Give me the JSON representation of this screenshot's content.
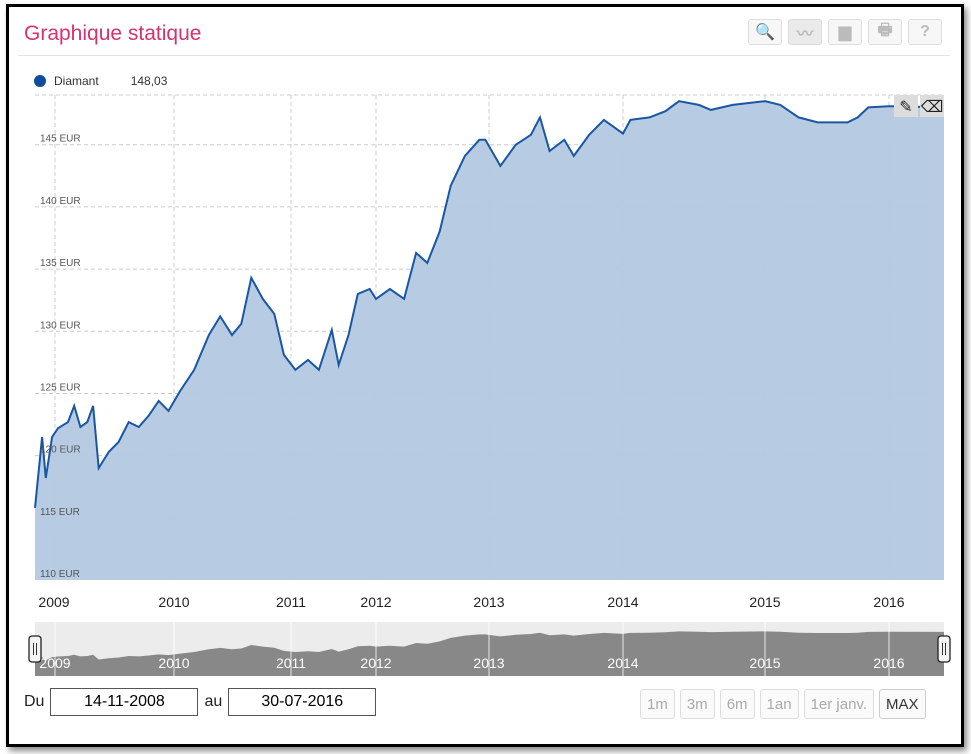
{
  "header": {
    "title": "Graphique statique",
    "tools": [
      {
        "name": "search-icon",
        "glyph": "🔍"
      },
      {
        "name": "line-chart-icon",
        "glyph": "〰"
      },
      {
        "name": "area-chart-icon",
        "glyph": "▆"
      },
      {
        "name": "print-icon",
        "glyph": "🖶"
      },
      {
        "name": "help-icon",
        "glyph": "?"
      }
    ]
  },
  "chart_data": {
    "type": "area",
    "legend": {
      "name": "Diamant",
      "value": "148,03",
      "placement": "top-left"
    },
    "series": [
      {
        "name": "Diamant",
        "color": "#1a56a3",
        "fill": "#b3c9e2",
        "points": [
          [
            "2008-11-14",
            115.8
          ],
          [
            "2008-12-01",
            121.5
          ],
          [
            "2008-12-10",
            118.2
          ],
          [
            "2008-12-25",
            121.5
          ],
          [
            "2009-01-10",
            122.2
          ],
          [
            "2009-02-10",
            122.7
          ],
          [
            "2009-03-01",
            124.0
          ],
          [
            "2009-03-20",
            122.3
          ],
          [
            "2009-04-10",
            122.7
          ],
          [
            "2009-04-28",
            124.0
          ],
          [
            "2009-05-15",
            119.0
          ],
          [
            "2009-06-15",
            120.3
          ],
          [
            "2009-07-15",
            121.1
          ],
          [
            "2009-08-15",
            122.7
          ],
          [
            "2009-09-15",
            122.3
          ],
          [
            "2009-10-15",
            123.2
          ],
          [
            "2009-11-15",
            124.4
          ],
          [
            "2009-12-15",
            123.6
          ],
          [
            "2010-01-20",
            125.2
          ],
          [
            "2010-03-05",
            126.9
          ],
          [
            "2010-04-20",
            129.7
          ],
          [
            "2010-05-25",
            131.2
          ],
          [
            "2010-07-01",
            129.7
          ],
          [
            "2010-07-30",
            130.6
          ],
          [
            "2010-08-30",
            134.3
          ],
          [
            "2010-10-05",
            132.6
          ],
          [
            "2010-11-10",
            131.4
          ],
          [
            "2010-12-10",
            128.1
          ],
          [
            "2011-01-20",
            126.9
          ],
          [
            "2011-03-15",
            127.7
          ],
          [
            "2011-05-01",
            126.9
          ],
          [
            "2011-06-25",
            130.1
          ],
          [
            "2011-07-25",
            127.3
          ],
          [
            "2011-09-05",
            129.7
          ],
          [
            "2011-10-15",
            133.0
          ],
          [
            "2011-12-05",
            133.4
          ],
          [
            "2012-01-01",
            132.6
          ],
          [
            "2012-02-15",
            133.4
          ],
          [
            "2012-04-01",
            132.6
          ],
          [
            "2012-05-10",
            136.3
          ],
          [
            "2012-06-15",
            135.5
          ],
          [
            "2012-07-25",
            138.0
          ],
          [
            "2012-08-30",
            141.7
          ],
          [
            "2012-10-15",
            144.1
          ],
          [
            "2012-12-01",
            145.4
          ],
          [
            "2012-12-20",
            145.4
          ],
          [
            "2013-02-01",
            143.3
          ],
          [
            "2013-03-15",
            145.0
          ],
          [
            "2013-04-25",
            145.8
          ],
          [
            "2013-05-20",
            147.2
          ],
          [
            "2013-06-15",
            144.5
          ],
          [
            "2013-07-25",
            145.4
          ],
          [
            "2013-08-20",
            144.1
          ],
          [
            "2013-10-01",
            145.8
          ],
          [
            "2013-11-10",
            147.0
          ],
          [
            "2014-01-01",
            145.9
          ],
          [
            "2014-01-20",
            147.0
          ],
          [
            "2014-03-10",
            147.2
          ],
          [
            "2014-04-20",
            147.7
          ],
          [
            "2014-05-25",
            148.5
          ],
          [
            "2014-07-15",
            148.2
          ],
          [
            "2014-08-15",
            147.8
          ],
          [
            "2014-10-10",
            148.2
          ],
          [
            "2015-01-01",
            148.5
          ],
          [
            "2015-02-15",
            148.2
          ],
          [
            "2015-04-10",
            147.2
          ],
          [
            "2015-06-05",
            146.8
          ],
          [
            "2015-09-01",
            146.8
          ],
          [
            "2015-10-01",
            147.2
          ],
          [
            "2015-11-01",
            148.0
          ],
          [
            "2016-01-01",
            148.1
          ],
          [
            "2016-07-30",
            148.0
          ]
        ]
      }
    ],
    "xlabel": "",
    "ylabel": "",
    "ylim": [
      110,
      149
    ],
    "yticks": [
      "110 EUR",
      "115 EUR",
      "120 EUR",
      "125 EUR",
      "130 EUR",
      "135 EUR",
      "140 EUR",
      "145 EUR"
    ],
    "ytick_values": [
      110,
      115,
      120,
      125,
      130,
      135,
      140,
      145
    ],
    "xticks": [
      "2009",
      "2010",
      "2011",
      "2012",
      "2013",
      "2014",
      "2015",
      "2016"
    ],
    "grid": true,
    "navigator": {
      "color": "#888888",
      "background": "#ececec"
    }
  },
  "annotation_tools": [
    {
      "name": "pencil-icon",
      "glyph": "✎"
    },
    {
      "name": "eraser-icon",
      "glyph": "⌫"
    }
  ],
  "footer": {
    "from_label": "Du",
    "from_value": "14-11-2008",
    "to_label": "au",
    "to_value": "30-07-2016",
    "ranges": [
      "1m",
      "3m",
      "6m",
      "1an",
      "1er janv.",
      "MAX"
    ],
    "active_range": "MAX"
  }
}
